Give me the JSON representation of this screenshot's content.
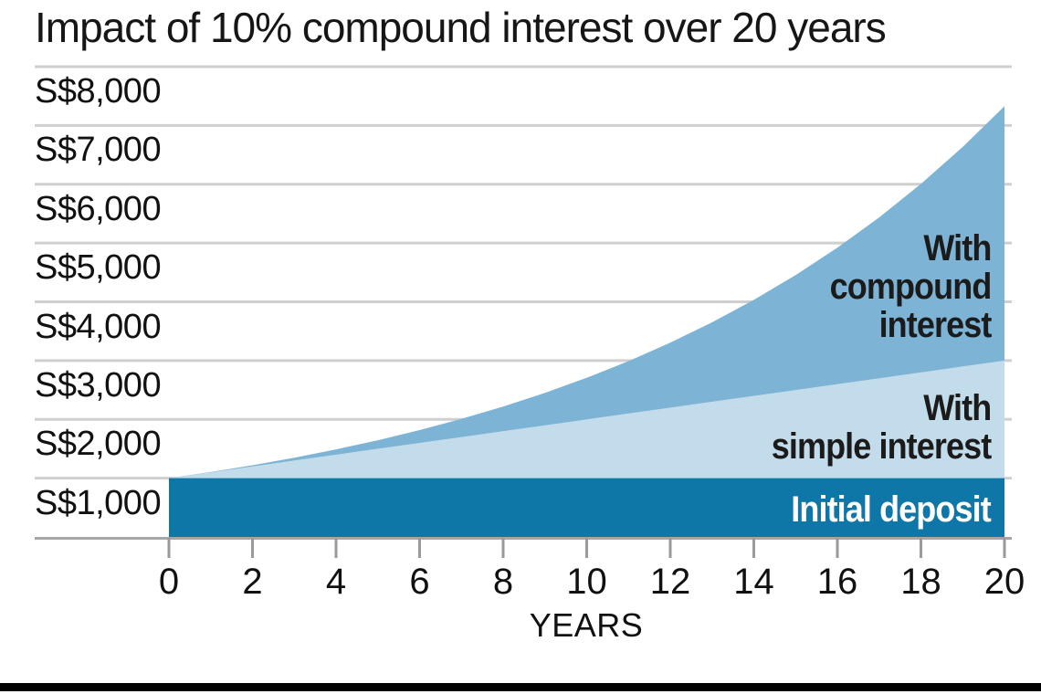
{
  "title": "Impact of 10% compound interest over 20 years",
  "colors": {
    "compound_area": "#7db3d5",
    "simple_area": "#c3dcec",
    "deposit_bar": "#0f76a8",
    "gridline": "#cfcfcf",
    "axis_line": "#a6a6a6",
    "tick_mark": "#9a9a9a",
    "text": "#111111",
    "annotation_text": "#1b1b1b",
    "deposit_label_text": "#ffffff",
    "footer_rule": "#000000"
  },
  "chart_data": {
    "type": "area",
    "title": "Impact of 10% compound interest over 20 years",
    "xlabel": "YEARS",
    "ylabel": "",
    "currency": "S$",
    "xlim": [
      0,
      20
    ],
    "ylim": [
      0,
      8000
    ],
    "grid": true,
    "legend_position": "labels-inside-areas",
    "x": [
      0,
      1,
      2,
      3,
      4,
      5,
      6,
      7,
      8,
      9,
      10,
      11,
      12,
      13,
      14,
      15,
      16,
      17,
      18,
      19,
      20
    ],
    "x_tick_values": [
      0,
      2,
      4,
      6,
      8,
      10,
      12,
      14,
      16,
      18,
      20
    ],
    "x_tick_labels": [
      "0",
      "2",
      "4",
      "6",
      "8",
      "10",
      "12",
      "14",
      "16",
      "18",
      "20"
    ],
    "y_tick_values": [
      8000,
      7000,
      6000,
      5000,
      4000,
      3000,
      2000,
      1000
    ],
    "y_tick_labels": [
      "S$8,000",
      "S$7,000",
      "S$6,000",
      "S$5,000",
      "S$4,000",
      "S$3,000",
      "S$2,000",
      "S$1,000"
    ],
    "series": [
      {
        "name": "With compound interest",
        "color": "#7db3d5",
        "values": [
          1000,
          1105,
          1220,
          1348,
          1489,
          1645,
          1818,
          2008,
          2218,
          2450,
          2707,
          2991,
          3304,
          3650,
          4032,
          4454,
          4920,
          5436,
          6005,
          6634,
          7328
        ]
      },
      {
        "name": "With simple interest",
        "color": "#c3dcec",
        "values": [
          1000,
          1100,
          1200,
          1300,
          1400,
          1500,
          1600,
          1700,
          1800,
          1900,
          2000,
          2100,
          2200,
          2300,
          2400,
          2500,
          2600,
          2700,
          2800,
          2900,
          3000
        ]
      },
      {
        "name": "Initial deposit",
        "color": "#0f76a8",
        "values": [
          1000,
          1000,
          1000,
          1000,
          1000,
          1000,
          1000,
          1000,
          1000,
          1000,
          1000,
          1000,
          1000,
          1000,
          1000,
          1000,
          1000,
          1000,
          1000,
          1000,
          1000
        ]
      }
    ],
    "annotations": [
      {
        "name": "With compound interest",
        "lines": [
          "With",
          "compound",
          "interest"
        ]
      },
      {
        "name": "With simple interest",
        "lines": [
          "With",
          "simple interest"
        ]
      },
      {
        "name": "Initial deposit",
        "lines": [
          "Initial deposit"
        ]
      }
    ]
  }
}
